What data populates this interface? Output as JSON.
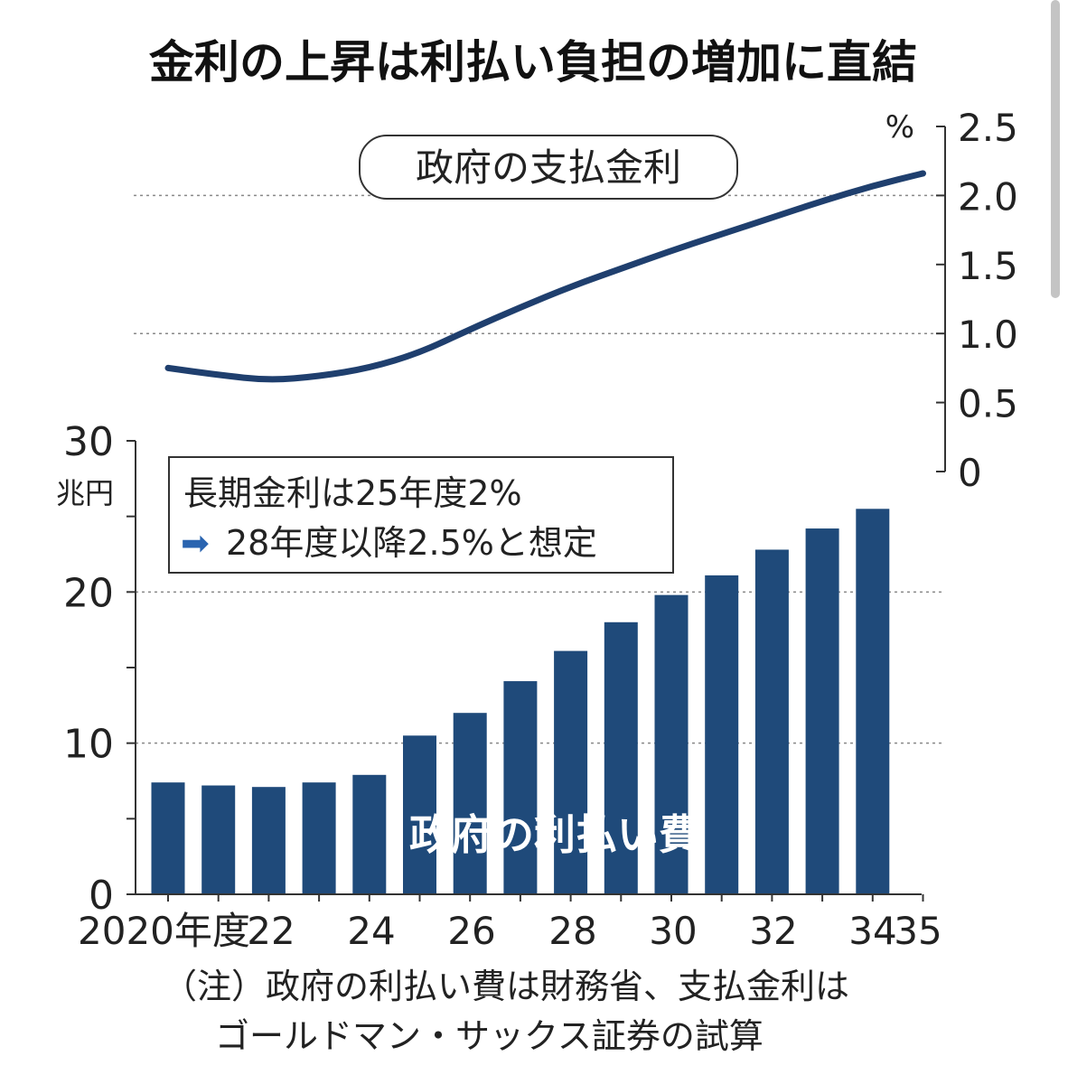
{
  "chart_data": {
    "title": "金利の上昇は利払い負担の増加に直結",
    "note_lines": [
      "（注）政府の利払い費は財務省、支払金利は",
      "ゴールドマン・サックス証券の試算"
    ],
    "x_tick_labels": [
      "2020年度",
      "22",
      "24",
      "26",
      "28",
      "30",
      "32",
      "34",
      "35"
    ],
    "line_chart": {
      "type": "line",
      "label": "政府の支払金利",
      "unit": "%",
      "ylim": [
        0,
        2.5
      ],
      "y_ticks": [
        "0",
        "0.5",
        "1.0",
        "1.5",
        "2.0",
        "2.5"
      ],
      "gridlines": [
        1.0,
        2.0
      ],
      "x": [
        2020,
        2021,
        2022,
        2023,
        2024,
        2025,
        2026,
        2027,
        2028,
        2029,
        2030,
        2031,
        2032,
        2033,
        2034,
        2035
      ],
      "values": [
        0.75,
        0.7,
        0.66,
        0.69,
        0.75,
        0.86,
        1.03,
        1.19,
        1.34,
        1.47,
        1.6,
        1.72,
        1.84,
        1.96,
        2.07,
        2.16
      ],
      "color": "#1f3f6e"
    },
    "bar_chart": {
      "type": "bar",
      "label": "政府の利払い費",
      "unit": "兆円",
      "ylim": [
        0,
        30
      ],
      "y_ticks": [
        "0",
        "10",
        "20",
        "30"
      ],
      "gridlines": [
        10,
        20
      ],
      "categories": [
        2020,
        2021,
        2022,
        2023,
        2024,
        2025,
        2026,
        2027,
        2028,
        2029,
        2030,
        2031,
        2032,
        2033,
        2034
      ],
      "values": [
        7.4,
        7.2,
        7.1,
        7.4,
        7.9,
        10.5,
        12.0,
        14.1,
        16.1,
        18.0,
        19.8,
        21.1,
        22.8,
        24.2,
        25.5
      ],
      "color": "#1f4a7a",
      "annotation": {
        "line1": "長期金利は25年度2%",
        "arrow": "➡",
        "line2": "28年度以降2.5%と想定"
      }
    }
  }
}
